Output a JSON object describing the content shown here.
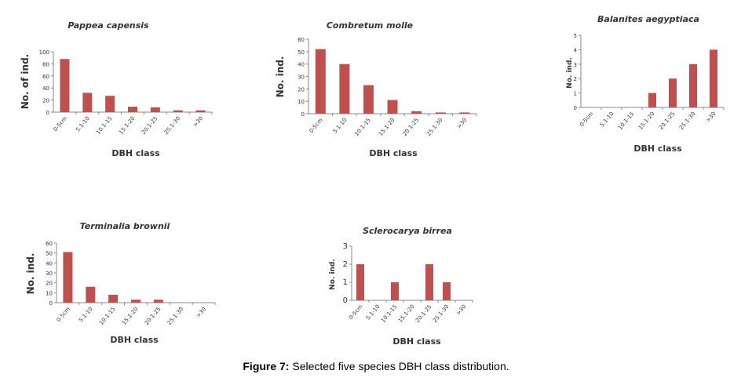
{
  "caption": {
    "label": "Figure 7:",
    "text": " Selected five species DBH class distribution."
  },
  "colors": {
    "bar": "#c0504d",
    "axis": "#888888"
  },
  "chart_data": [
    {
      "type": "bar",
      "title": "Pappea capensis",
      "xlabel": "DBH class",
      "ylabel": "No. of ind.",
      "categories": [
        "0-5cm",
        "5.1-10",
        "10.1-15",
        "15.1-20",
        "20.1-25",
        "25.1-30",
        ">30"
      ],
      "values": [
        88,
        32,
        27,
        9,
        8,
        3,
        3
      ],
      "ylim": [
        0,
        100
      ],
      "yticks": [
        0,
        20,
        40,
        60,
        80,
        100
      ]
    },
    {
      "type": "bar",
      "title": "Combretum molle",
      "xlabel": "DBH class",
      "ylabel": "No. ind.",
      "categories": [
        "0-5cm",
        "5.1-10",
        "10.1-15",
        "15.1-20",
        "20.1-25",
        "25.1-30",
        ">30"
      ],
      "values": [
        52,
        40,
        23,
        11,
        2,
        1,
        1
      ],
      "ylim": [
        0,
        60
      ],
      "yticks": [
        0,
        10,
        20,
        30,
        40,
        50,
        60
      ]
    },
    {
      "type": "bar",
      "title": "Balanites aegyptiaca",
      "xlabel": "DBH class",
      "ylabel": "No. ind.",
      "categories": [
        "0-5cm",
        "5.1-10",
        "10.1-15",
        "15.1-20",
        "20.1-25",
        "25.1-30",
        ">30"
      ],
      "values": [
        0,
        0,
        0,
        1,
        2,
        3,
        4
      ],
      "ylim": [
        0,
        5
      ],
      "yticks": [
        0,
        1,
        2,
        3,
        4,
        5
      ]
    },
    {
      "type": "bar",
      "title": "Terminalia brownii",
      "xlabel": "DBH class",
      "ylabel": "No. ind.",
      "categories": [
        "0-5cm",
        "5.1-10",
        "10.1-15",
        "15.1-20",
        "20.1-25",
        "25.1-30",
        ">30"
      ],
      "values": [
        51,
        16,
        8,
        3,
        3,
        0,
        0
      ],
      "ylim": [
        0,
        60
      ],
      "yticks": [
        0,
        10,
        20,
        30,
        40,
        50,
        60
      ]
    },
    {
      "type": "bar",
      "title": "Sclerocarya birrea",
      "xlabel": "DBH class",
      "ylabel": "No. ind.",
      "categories": [
        "0-5cm",
        "5.1-10",
        "10.1-15",
        "15.1-20",
        "20.1-25",
        "25.1-30",
        ">30"
      ],
      "values": [
        2,
        0,
        1,
        0,
        2,
        1,
        0
      ],
      "ylim": [
        0,
        3
      ],
      "yticks": [
        0,
        1,
        2,
        3
      ]
    }
  ]
}
